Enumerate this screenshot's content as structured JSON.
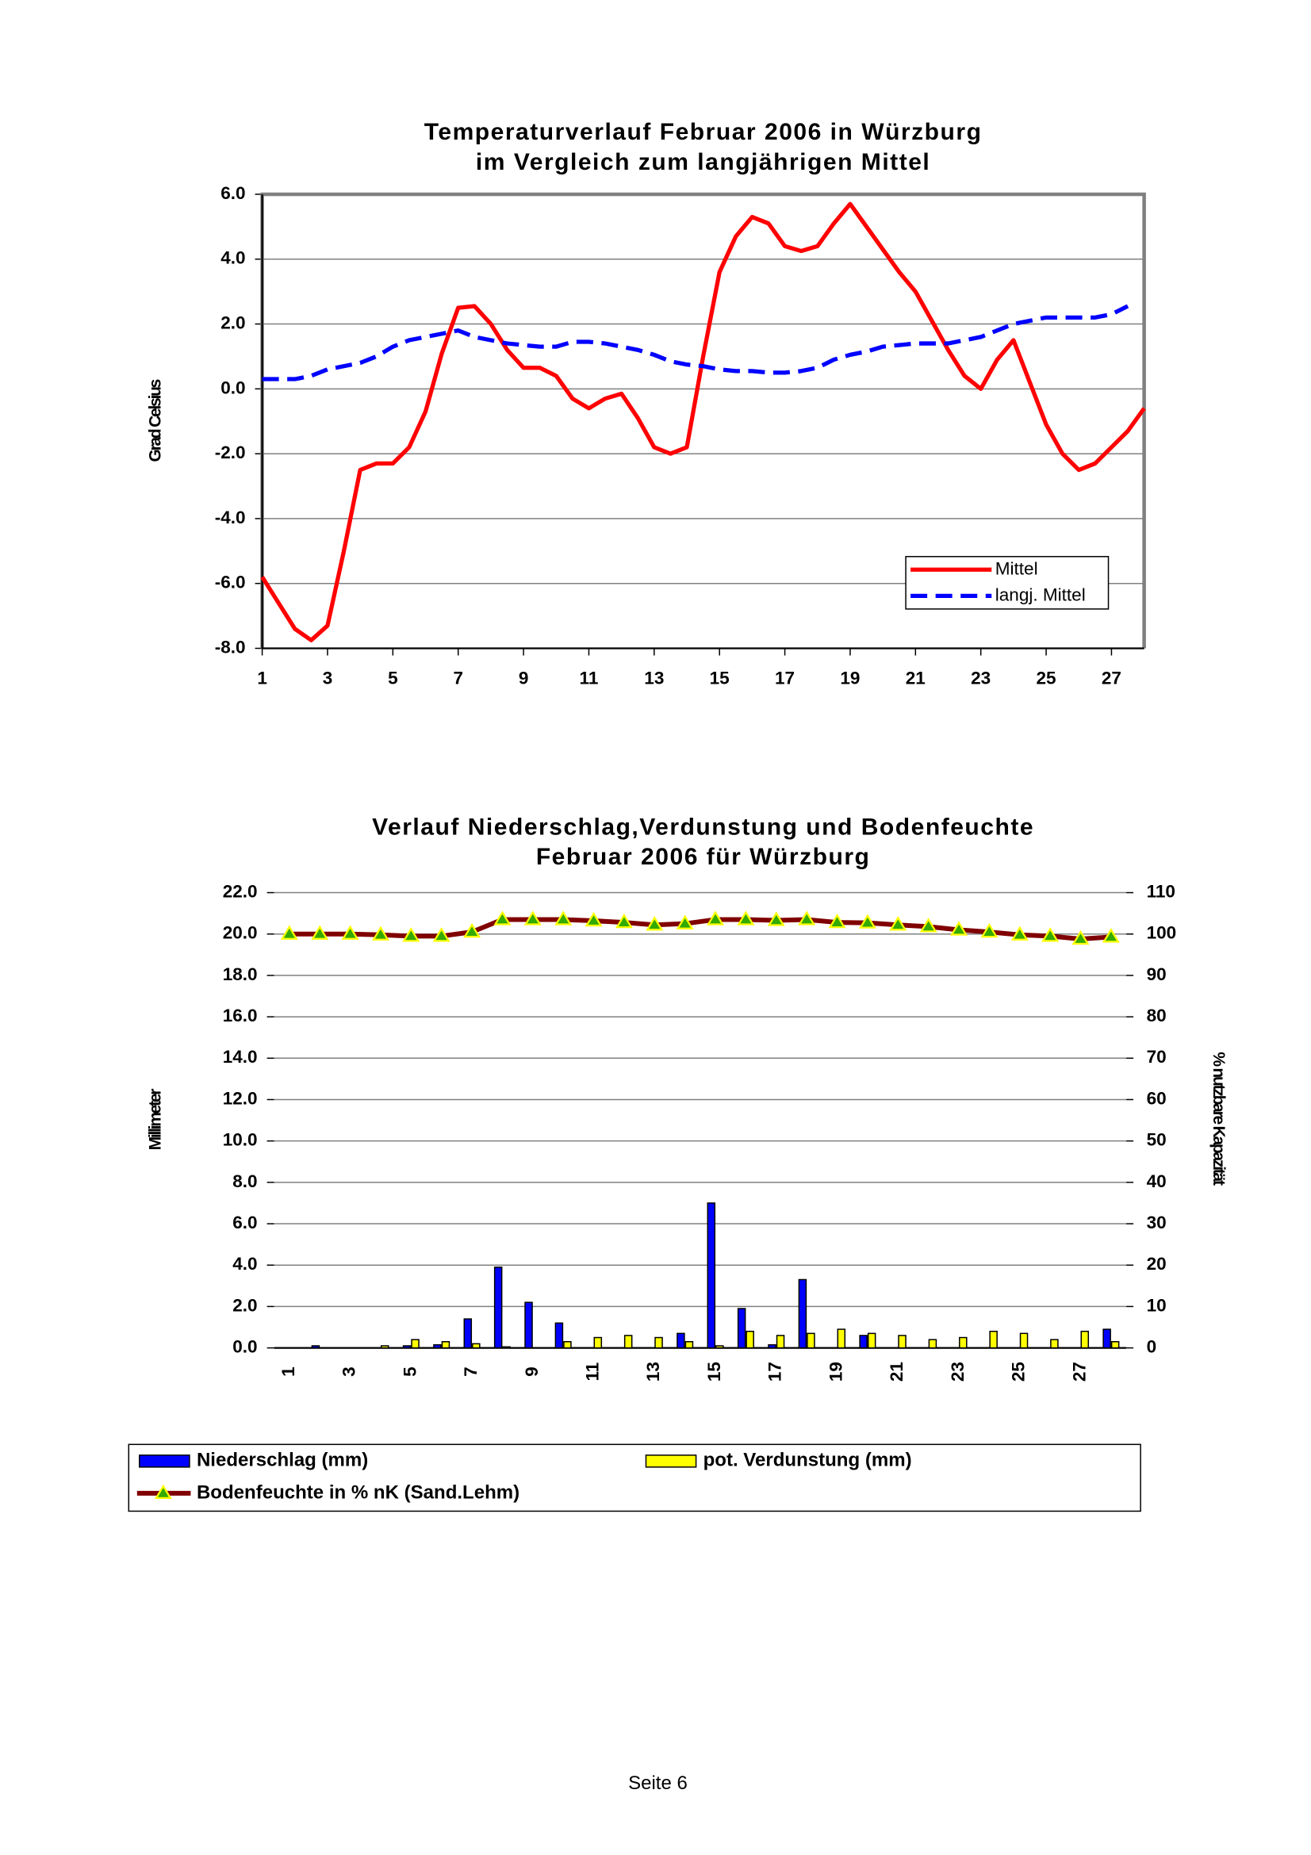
{
  "chart_data": [
    {
      "type": "line",
      "title": [
        "Temperaturverlauf Februar 2006 in Würzburg",
        "im Vergleich zum langjährigen Mittel"
      ],
      "ylabel": "Grad Celsius",
      "x": [
        1,
        1.5,
        2,
        2.5,
        3,
        3.5,
        4,
        4.5,
        5,
        5.5,
        6,
        6.5,
        7,
        7.5,
        8,
        8.5,
        9,
        9.5,
        10,
        10.5,
        11,
        11.5,
        12,
        12.5,
        13,
        13.5,
        14,
        14.5,
        15,
        15.5,
        16,
        16.5,
        17,
        17.5,
        18,
        18.5,
        19,
        19.5,
        20,
        20.5,
        21,
        21.5,
        22,
        22.5,
        23,
        23.5,
        24,
        24.5,
        25,
        25.5,
        26,
        26.5,
        27,
        27.5,
        28
      ],
      "series": [
        {
          "name": "Mittel",
          "color": "#ff0000",
          "dashed": false,
          "values": [
            -5.8,
            -6.6,
            -7.4,
            -7.75,
            -7.3,
            -5.0,
            -2.5,
            -2.3,
            -2.3,
            -1.8,
            -0.7,
            1.1,
            2.5,
            2.55,
            2.0,
            1.2,
            0.65,
            0.65,
            0.4,
            -0.3,
            -0.6,
            -0.3,
            -0.15,
            -0.9,
            -1.8,
            -2.0,
            -1.8,
            1.0,
            3.6,
            4.7,
            5.3,
            5.1,
            4.4,
            4.25,
            4.4,
            5.1,
            5.7,
            5.0,
            4.3,
            3.6,
            3.0,
            2.1,
            1.2,
            0.4,
            0.0,
            0.9,
            1.5,
            0.2,
            -1.1,
            -2.0,
            -2.5,
            -2.3,
            -1.8,
            -1.3,
            -0.6
          ]
        },
        {
          "name": "langj. Mittel",
          "color": "#0000ff",
          "dashed": true,
          "values": [
            0.3,
            0.3,
            0.3,
            0.4,
            0.6,
            0.7,
            0.8,
            1.0,
            1.3,
            1.5,
            1.6,
            1.7,
            1.8,
            1.6,
            1.5,
            1.4,
            1.35,
            1.3,
            1.3,
            1.45,
            1.45,
            1.4,
            1.3,
            1.2,
            1.05,
            0.85,
            0.75,
            0.7,
            0.6,
            0.55,
            0.55,
            0.5,
            0.5,
            0.55,
            0.65,
            0.9,
            1.05,
            1.15,
            1.3,
            1.35,
            1.4,
            1.4,
            1.4,
            1.5,
            1.6,
            1.8,
            2.0,
            2.1,
            2.2,
            2.2,
            2.2,
            2.2,
            2.3,
            2.55,
            null
          ]
        }
      ],
      "xlim": [
        1,
        28
      ],
      "xticks": [
        1,
        3,
        5,
        7,
        9,
        11,
        13,
        15,
        17,
        19,
        21,
        23,
        25,
        27
      ],
      "ylim": [
        -8,
        6
      ],
      "yticks": [
        {
          "value": -8,
          "label": "-8.0"
        },
        {
          "value": -6,
          "label": "-6.0"
        },
        {
          "value": -4,
          "label": "-4.0"
        },
        {
          "value": -2,
          "label": "-2.0"
        },
        {
          "value": 0,
          "label": "0.0"
        },
        {
          "value": 2,
          "label": "2.0"
        },
        {
          "value": 4,
          "label": "4.0"
        },
        {
          "value": 6,
          "label": "6.0"
        }
      ],
      "grid": true,
      "legend": "lower right"
    },
    {
      "type": "bar",
      "title": [
        "Verlauf Niederschlag,Verdunstung und Bodenfeuchte",
        "Februar 2006 für Würzburg"
      ],
      "ylabel": "Millimeter",
      "y2label": "% nutzbare Kapazität",
      "categories": [
        "1",
        null,
        "3",
        null,
        "5",
        null,
        "7",
        null,
        "9",
        null,
        "11",
        null,
        "13",
        null,
        "15",
        null,
        "17",
        null,
        "19",
        null,
        "21",
        null,
        "23",
        null,
        "25",
        null,
        "27",
        null
      ],
      "series": [
        {
          "name": "Niederschlag (mm)",
          "color": "#0000ff",
          "values": [
            0,
            0.1,
            0,
            0,
            0.1,
            0.15,
            1.4,
            3.9,
            2.2,
            1.2,
            0,
            0,
            0,
            0.7,
            7.0,
            1.9,
            0.15,
            3.3,
            0,
            0.6,
            0,
            0,
            0,
            0,
            0,
            0,
            0,
            0.9
          ]
        },
        {
          "name": "pot. Verdunstung (mm)",
          "color": "#ffff00",
          "values": [
            0,
            0,
            0,
            0.1,
            0.4,
            0.3,
            0.2,
            0.05,
            0,
            0.3,
            0.5,
            0.6,
            0.5,
            0.3,
            0.1,
            0.8,
            0.6,
            0.7,
            0.9,
            0.7,
            0.6,
            0.4,
            0.5,
            0.8,
            0.7,
            0.4,
            0.8,
            0.3
          ]
        },
        {
          "name": "Bodenfeuchte in % nK (Sand.Lehm)",
          "color": "#800000",
          "marker_color": "#33aa00",
          "type": "line",
          "axis": "y2",
          "values": [
            100,
            100,
            100,
            99.8,
            99.5,
            99.5,
            100.5,
            103.5,
            103.5,
            103.5,
            103.2,
            102.8,
            102.2,
            102.5,
            103.5,
            103.5,
            103.3,
            103.5,
            102.8,
            102.7,
            102.2,
            101.8,
            101,
            100.5,
            99.8,
            99.5,
            98.8,
            99.3
          ]
        }
      ],
      "ylim": [
        0,
        22
      ],
      "yticks": [
        {
          "value": 0,
          "label": "0.0"
        },
        {
          "value": 2,
          "label": "2.0"
        },
        {
          "value": 4,
          "label": "4.0"
        },
        {
          "value": 6,
          "label": "6.0"
        },
        {
          "value": 8,
          "label": "8.0"
        },
        {
          "value": 10,
          "label": "10.0"
        },
        {
          "value": 12,
          "label": "12.0"
        },
        {
          "value": 14,
          "label": "14.0"
        },
        {
          "value": 16,
          "label": "16.0"
        },
        {
          "value": 18,
          "label": "18.0"
        },
        {
          "value": 20,
          "label": "20.0"
        },
        {
          "value": 22,
          "label": "22.0"
        }
      ],
      "y2lim": [
        0,
        110
      ],
      "y2ticks": [
        0,
        10,
        20,
        30,
        40,
        50,
        60,
        70,
        80,
        90,
        100,
        110
      ],
      "grid": true,
      "legend": "bottom"
    }
  ],
  "footer": "Seite 6"
}
